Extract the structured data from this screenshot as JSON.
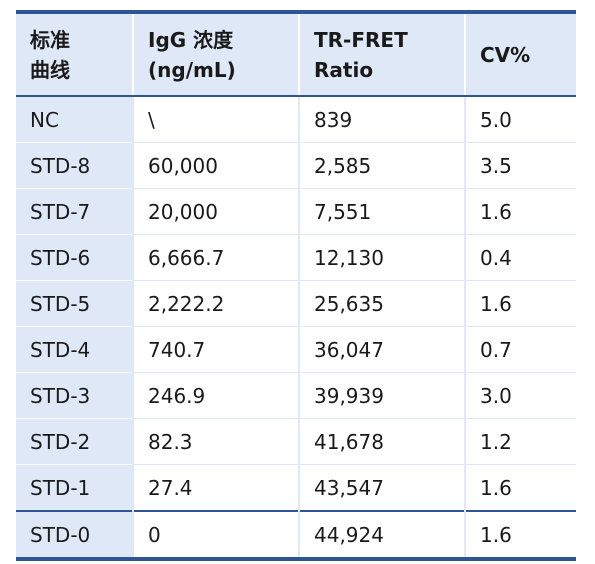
{
  "table": {
    "headers": [
      {
        "line1": "标准",
        "line2": "曲线"
      },
      {
        "line1": "IgG 浓度",
        "line2": "(ng/mL)"
      },
      {
        "line1": "TR-FRET",
        "line2": "Ratio"
      },
      {
        "line1": "CV%",
        "line2": ""
      }
    ],
    "rows": [
      {
        "curve": "NC",
        "conc": "\\",
        "ratio": "839",
        "cv": "5.0"
      },
      {
        "curve": "STD-8",
        "conc": "60,000",
        "ratio": "2,585",
        "cv": "3.5"
      },
      {
        "curve": "STD-7",
        "conc": "20,000",
        "ratio": "7,551",
        "cv": "1.6"
      },
      {
        "curve": "STD-6",
        "conc": "6,666.7",
        "ratio": "12,130",
        "cv": "0.4"
      },
      {
        "curve": "STD-5",
        "conc": "2,222.2",
        "ratio": "25,635",
        "cv": "1.6"
      },
      {
        "curve": "STD-4",
        "conc": "740.7",
        "ratio": "36,047",
        "cv": "0.7"
      },
      {
        "curve": "STD-3",
        "conc": "246.9",
        "ratio": "39,939",
        "cv": "3.0"
      },
      {
        "curve": "STD-2",
        "conc": "82.3",
        "ratio": "41,678",
        "cv": "1.2"
      },
      {
        "curve": "STD-1",
        "conc": "27.4",
        "ratio": "43,547",
        "cv": "1.6"
      },
      {
        "curve": "STD-0",
        "conc": "0",
        "ratio": "44,924",
        "cv": "1.6"
      }
    ]
  },
  "colors": {
    "header_bg": "#dfe8f6",
    "rule": "#2f5597"
  }
}
